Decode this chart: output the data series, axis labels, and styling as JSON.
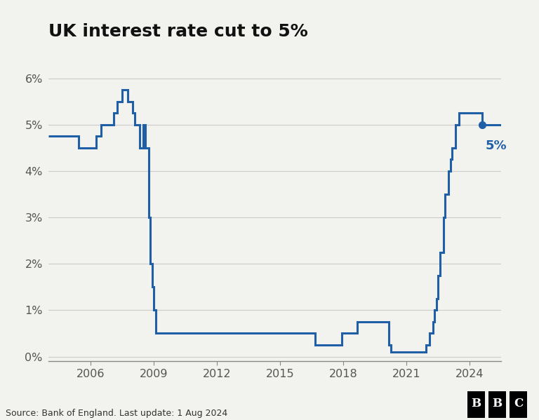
{
  "title": "UK interest rate cut to 5%",
  "title_fontsize": 18,
  "source_text": "Source: Bank of England. Last update: 1 Aug 2024",
  "line_color": "#1f5fa6",
  "dot_color": "#1f5fa6",
  "background_color": "#f2f2ee",
  "annotation_text": "5%",
  "annotation_color": "#1f5fa6",
  "ylim": [
    -0.1,
    6.6
  ],
  "yticks": [
    0,
    1,
    2,
    3,
    4,
    5,
    6
  ],
  "ytick_labels": [
    "0%",
    "1%",
    "2%",
    "3%",
    "4%",
    "5%",
    "6%"
  ],
  "xticks": [
    2006,
    2009,
    2012,
    2015,
    2018,
    2021,
    2024
  ],
  "rate_changes": [
    [
      2004.0,
      4.75
    ],
    [
      2004.667,
      4.75
    ],
    [
      2004.917,
      4.75
    ],
    [
      2005.0,
      4.75
    ],
    [
      2005.333,
      4.75
    ],
    [
      2005.417,
      4.5
    ],
    [
      2006.083,
      4.5
    ],
    [
      2006.25,
      4.75
    ],
    [
      2006.5,
      5.0
    ],
    [
      2006.917,
      5.0
    ],
    [
      2007.083,
      5.25
    ],
    [
      2007.25,
      5.5
    ],
    [
      2007.5,
      5.75
    ],
    [
      2007.75,
      5.5
    ],
    [
      2007.917,
      5.5
    ],
    [
      2008.0,
      5.25
    ],
    [
      2008.083,
      5.0
    ],
    [
      2008.333,
      4.5
    ],
    [
      2008.5,
      5.0
    ],
    [
      2008.583,
      4.5
    ],
    [
      2008.75,
      3.0
    ],
    [
      2008.833,
      2.0
    ],
    [
      2008.917,
      1.5
    ],
    [
      2009.0,
      1.0
    ],
    [
      2009.083,
      0.5
    ],
    [
      2016.583,
      0.5
    ],
    [
      2016.667,
      0.25
    ],
    [
      2017.833,
      0.25
    ],
    [
      2017.917,
      0.5
    ],
    [
      2018.583,
      0.5
    ],
    [
      2018.667,
      0.75
    ],
    [
      2019.917,
      0.75
    ],
    [
      2020.167,
      0.25
    ],
    [
      2020.25,
      0.1
    ],
    [
      2021.917,
      0.1
    ],
    [
      2021.917,
      0.25
    ],
    [
      2022.0,
      0.25
    ],
    [
      2022.083,
      0.5
    ],
    [
      2022.25,
      0.75
    ],
    [
      2022.333,
      1.0
    ],
    [
      2022.417,
      1.25
    ],
    [
      2022.5,
      1.75
    ],
    [
      2022.583,
      2.25
    ],
    [
      2022.75,
      3.0
    ],
    [
      2022.833,
      3.5
    ],
    [
      2023.0,
      4.0
    ],
    [
      2023.083,
      4.25
    ],
    [
      2023.167,
      4.5
    ],
    [
      2023.333,
      5.0
    ],
    [
      2023.5,
      5.25
    ],
    [
      2024.583,
      5.0
    ]
  ],
  "final_date": 2024.583,
  "final_rate": 5.0,
  "peak_date": 2023.5,
  "peak_rate": 5.25,
  "xlim": [
    2004.0,
    2025.5
  ]
}
